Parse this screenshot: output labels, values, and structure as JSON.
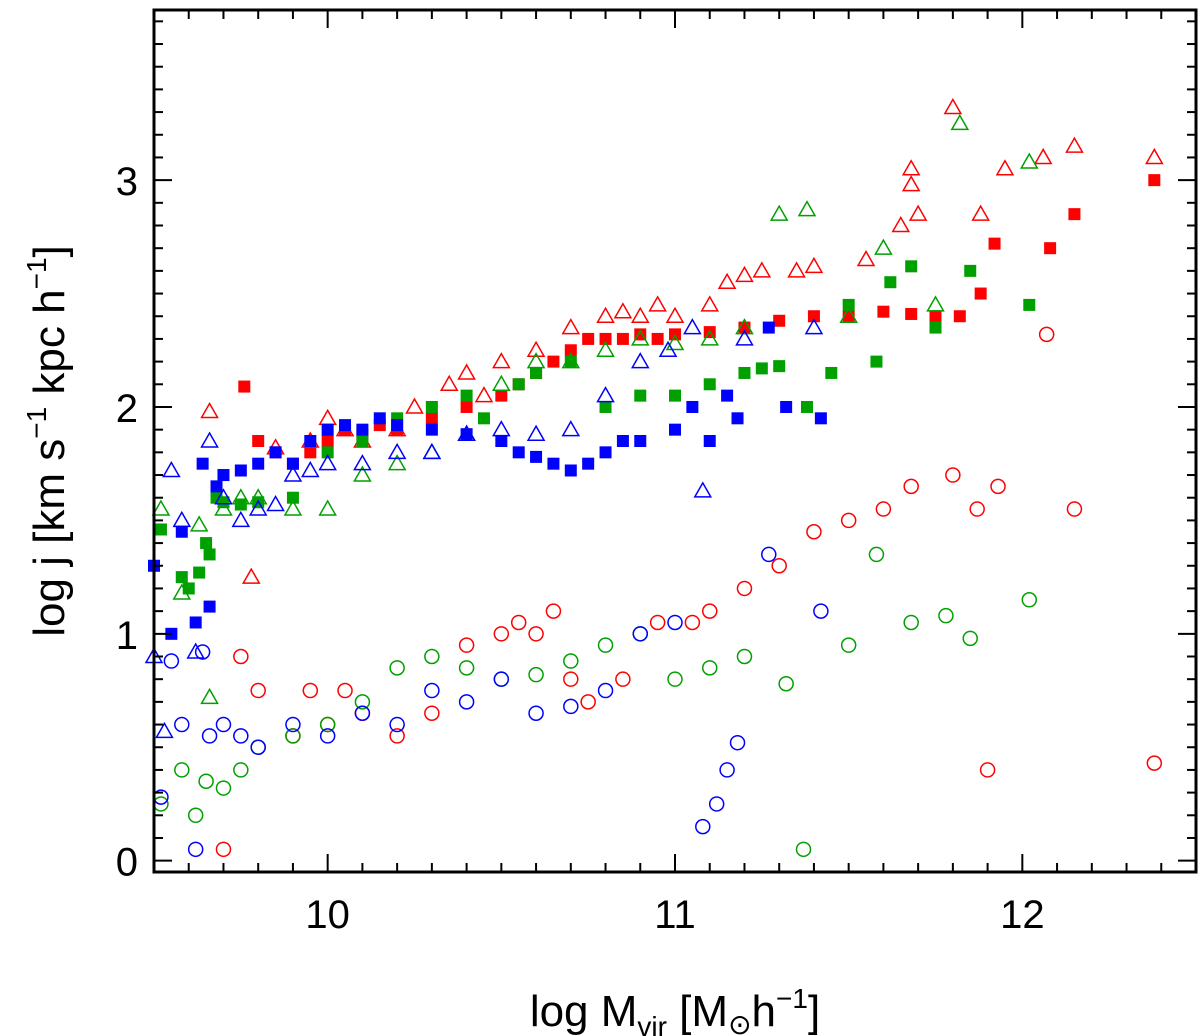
{
  "chart_data": {
    "type": "scatter",
    "title": "",
    "xlabel": {
      "base": "log  M",
      "sub": "vir",
      "bracket_open": " [M",
      "sun": "⊙",
      "unit": "h",
      "exp": "−1",
      "bracket_close": "]"
    },
    "ylabel": {
      "text": "log  j  [km  s",
      "exp1": "−1",
      "mid": "  kpc  h",
      "exp2": "−1",
      "close": "]"
    },
    "xlim": [
      9.5,
      12.5
    ],
    "ylim": [
      -0.05,
      3.75
    ],
    "x_ticks": [
      {
        "v": 10,
        "label": "10"
      },
      {
        "v": 11,
        "label": "11"
      },
      {
        "v": 12,
        "label": "12"
      }
    ],
    "y_ticks": [
      {
        "v": 0,
        "label": "0"
      },
      {
        "v": 1,
        "label": "1"
      },
      {
        "v": 2,
        "label": "2"
      },
      {
        "v": 3,
        "label": "3"
      }
    ],
    "grid": false,
    "series": [
      {
        "name": "red-squares",
        "color": "#ff0000",
        "marker": "square-filled",
        "points": [
          [
            9.76,
            2.09
          ],
          [
            9.8,
            1.85
          ],
          [
            9.85,
            1.8
          ],
          [
            9.9,
            1.75
          ],
          [
            9.95,
            1.8
          ],
          [
            10.0,
            1.85
          ],
          [
            10.05,
            1.9
          ],
          [
            10.1,
            1.88
          ],
          [
            10.15,
            1.92
          ],
          [
            10.2,
            1.9
          ],
          [
            10.3,
            1.95
          ],
          [
            10.4,
            2.0
          ],
          [
            10.5,
            2.05
          ],
          [
            10.55,
            2.1
          ],
          [
            10.6,
            2.15
          ],
          [
            10.65,
            2.2
          ],
          [
            10.7,
            2.25
          ],
          [
            10.75,
            2.3
          ],
          [
            10.8,
            2.3
          ],
          [
            10.85,
            2.3
          ],
          [
            10.9,
            2.32
          ],
          [
            10.95,
            2.3
          ],
          [
            11.0,
            2.32
          ],
          [
            11.1,
            2.33
          ],
          [
            11.2,
            2.35
          ],
          [
            11.3,
            2.38
          ],
          [
            11.4,
            2.4
          ],
          [
            11.5,
            2.4
          ],
          [
            11.6,
            2.42
          ],
          [
            11.68,
            2.41
          ],
          [
            11.75,
            2.4
          ],
          [
            11.82,
            2.4
          ],
          [
            11.88,
            2.5
          ],
          [
            11.92,
            2.72
          ],
          [
            12.08,
            2.7
          ],
          [
            12.15,
            2.85
          ],
          [
            12.38,
            3.0
          ]
        ]
      },
      {
        "name": "red-triangles",
        "color": "#ff0000",
        "marker": "triangle-open",
        "points": [
          [
            9.66,
            1.98
          ],
          [
            9.78,
            1.25
          ],
          [
            9.85,
            1.82
          ],
          [
            9.95,
            1.85
          ],
          [
            10.0,
            1.95
          ],
          [
            10.05,
            1.9
          ],
          [
            10.1,
            1.85
          ],
          [
            10.2,
            1.9
          ],
          [
            10.25,
            2.0
          ],
          [
            10.35,
            2.1
          ],
          [
            10.4,
            2.15
          ],
          [
            10.45,
            2.05
          ],
          [
            10.5,
            2.2
          ],
          [
            10.6,
            2.25
          ],
          [
            10.7,
            2.35
          ],
          [
            10.8,
            2.4
          ],
          [
            10.85,
            2.42
          ],
          [
            10.9,
            2.4
          ],
          [
            10.95,
            2.45
          ],
          [
            11.0,
            2.4
          ],
          [
            11.1,
            2.45
          ],
          [
            11.15,
            2.55
          ],
          [
            11.2,
            2.58
          ],
          [
            11.25,
            2.6
          ],
          [
            11.35,
            2.6
          ],
          [
            11.4,
            2.62
          ],
          [
            11.55,
            2.65
          ],
          [
            11.65,
            2.8
          ],
          [
            11.68,
            2.98
          ],
          [
            11.68,
            3.05
          ],
          [
            11.7,
            2.85
          ],
          [
            11.8,
            3.32
          ],
          [
            11.88,
            2.85
          ],
          [
            11.95,
            3.05
          ],
          [
            12.06,
            3.1
          ],
          [
            12.15,
            3.15
          ],
          [
            12.38,
            3.1
          ]
        ]
      },
      {
        "name": "green-squares",
        "color": "#00a000",
        "marker": "square-filled",
        "points": [
          [
            9.52,
            1.46
          ],
          [
            9.58,
            1.25
          ],
          [
            9.6,
            1.2
          ],
          [
            9.63,
            1.27
          ],
          [
            9.65,
            1.4
          ],
          [
            9.66,
            1.35
          ],
          [
            9.68,
            1.6
          ],
          [
            9.7,
            1.58
          ],
          [
            9.75,
            1.57
          ],
          [
            9.8,
            1.58
          ],
          [
            9.9,
            1.6
          ],
          [
            10.0,
            1.8
          ],
          [
            10.1,
            1.85
          ],
          [
            10.2,
            1.95
          ],
          [
            10.3,
            2.0
          ],
          [
            10.4,
            2.05
          ],
          [
            10.45,
            1.95
          ],
          [
            10.55,
            2.1
          ],
          [
            10.6,
            2.15
          ],
          [
            10.7,
            2.2
          ],
          [
            10.8,
            2.0
          ],
          [
            10.9,
            2.05
          ],
          [
            11.0,
            2.05
          ],
          [
            11.1,
            2.1
          ],
          [
            11.2,
            2.15
          ],
          [
            11.25,
            2.17
          ],
          [
            11.3,
            2.18
          ],
          [
            11.38,
            2.0
          ],
          [
            11.45,
            2.15
          ],
          [
            11.5,
            2.45
          ],
          [
            11.58,
            2.2
          ],
          [
            11.62,
            2.55
          ],
          [
            11.68,
            2.62
          ],
          [
            11.75,
            2.35
          ],
          [
            11.85,
            2.6
          ],
          [
            12.02,
            2.45
          ]
        ]
      },
      {
        "name": "green-triangles",
        "color": "#00a000",
        "marker": "triangle-open",
        "points": [
          [
            9.52,
            1.55
          ],
          [
            9.58,
            1.18
          ],
          [
            9.63,
            1.48
          ],
          [
            9.66,
            0.72
          ],
          [
            9.7,
            1.55
          ],
          [
            9.75,
            1.6
          ],
          [
            9.8,
            1.6
          ],
          [
            9.9,
            1.55
          ],
          [
            10.0,
            1.55
          ],
          [
            10.1,
            1.7
          ],
          [
            10.2,
            1.75
          ],
          [
            10.3,
            1.8
          ],
          [
            10.4,
            1.88
          ],
          [
            10.5,
            2.1
          ],
          [
            10.6,
            2.2
          ],
          [
            10.7,
            2.2
          ],
          [
            10.8,
            2.25
          ],
          [
            10.9,
            2.3
          ],
          [
            11.0,
            2.28
          ],
          [
            11.1,
            2.3
          ],
          [
            11.2,
            2.35
          ],
          [
            11.3,
            2.85
          ],
          [
            11.38,
            2.87
          ],
          [
            11.5,
            2.4
          ],
          [
            11.6,
            2.7
          ],
          [
            11.75,
            2.45
          ],
          [
            11.82,
            3.25
          ],
          [
            12.02,
            3.08
          ]
        ]
      },
      {
        "name": "blue-squares",
        "color": "#0000ff",
        "marker": "square-filled",
        "points": [
          [
            9.5,
            1.3
          ],
          [
            9.55,
            1.0
          ],
          [
            9.58,
            1.45
          ],
          [
            9.62,
            1.05
          ],
          [
            9.64,
            1.75
          ],
          [
            9.66,
            1.12
          ],
          [
            9.68,
            1.65
          ],
          [
            9.7,
            1.7
          ],
          [
            9.75,
            1.72
          ],
          [
            9.8,
            1.75
          ],
          [
            9.85,
            1.8
          ],
          [
            9.9,
            1.75
          ],
          [
            9.95,
            1.85
          ],
          [
            10.0,
            1.9
          ],
          [
            10.05,
            1.92
          ],
          [
            10.1,
            1.9
          ],
          [
            10.15,
            1.95
          ],
          [
            10.2,
            1.92
          ],
          [
            10.3,
            1.9
          ],
          [
            10.4,
            1.88
          ],
          [
            10.5,
            1.85
          ],
          [
            10.55,
            1.8
          ],
          [
            10.6,
            1.78
          ],
          [
            10.65,
            1.75
          ],
          [
            10.7,
            1.72
          ],
          [
            10.75,
            1.75
          ],
          [
            10.8,
            1.8
          ],
          [
            10.85,
            1.85
          ],
          [
            10.9,
            1.85
          ],
          [
            11.0,
            1.9
          ],
          [
            11.05,
            2.0
          ],
          [
            11.1,
            1.85
          ],
          [
            11.15,
            2.05
          ],
          [
            11.18,
            1.95
          ],
          [
            11.27,
            2.35
          ],
          [
            11.32,
            2.0
          ],
          [
            11.42,
            1.95
          ]
        ]
      },
      {
        "name": "blue-triangles",
        "color": "#0000ff",
        "marker": "triangle-open",
        "points": [
          [
            9.5,
            0.9
          ],
          [
            9.53,
            0.57
          ],
          [
            9.55,
            1.72
          ],
          [
            9.58,
            1.5
          ],
          [
            9.62,
            0.92
          ],
          [
            9.66,
            1.85
          ],
          [
            9.7,
            1.6
          ],
          [
            9.75,
            1.5
          ],
          [
            9.8,
            1.55
          ],
          [
            9.85,
            1.57
          ],
          [
            9.9,
            1.7
          ],
          [
            9.95,
            1.72
          ],
          [
            10.0,
            1.75
          ],
          [
            10.1,
            1.75
          ],
          [
            10.2,
            1.8
          ],
          [
            10.3,
            1.8
          ],
          [
            10.4,
            1.88
          ],
          [
            10.5,
            1.9
          ],
          [
            10.6,
            1.88
          ],
          [
            10.7,
            1.9
          ],
          [
            10.8,
            2.05
          ],
          [
            10.9,
            2.2
          ],
          [
            10.98,
            2.25
          ],
          [
            11.05,
            2.35
          ],
          [
            11.08,
            1.63
          ],
          [
            11.2,
            2.3
          ],
          [
            11.4,
            2.35
          ]
        ]
      },
      {
        "name": "red-circles",
        "color": "#ff0000",
        "marker": "circle-open",
        "points": [
          [
            9.7,
            0.05
          ],
          [
            9.75,
            0.9
          ],
          [
            9.8,
            0.75
          ],
          [
            9.9,
            0.55
          ],
          [
            9.95,
            0.75
          ],
          [
            10.0,
            0.6
          ],
          [
            10.05,
            0.75
          ],
          [
            10.1,
            0.65
          ],
          [
            10.2,
            0.55
          ],
          [
            10.3,
            0.65
          ],
          [
            10.4,
            0.95
          ],
          [
            10.5,
            1.0
          ],
          [
            10.55,
            1.05
          ],
          [
            10.6,
            1.0
          ],
          [
            10.65,
            1.1
          ],
          [
            10.7,
            0.8
          ],
          [
            10.75,
            0.7
          ],
          [
            10.85,
            0.8
          ],
          [
            10.95,
            1.05
          ],
          [
            11.05,
            1.05
          ],
          [
            11.1,
            1.1
          ],
          [
            11.2,
            1.2
          ],
          [
            11.3,
            1.3
          ],
          [
            11.4,
            1.45
          ],
          [
            11.5,
            1.5
          ],
          [
            11.6,
            1.55
          ],
          [
            11.68,
            1.65
          ],
          [
            11.8,
            1.7
          ],
          [
            11.87,
            1.55
          ],
          [
            11.9,
            0.4
          ],
          [
            11.93,
            1.65
          ],
          [
            12.07,
            2.32
          ],
          [
            12.15,
            1.55
          ],
          [
            12.38,
            0.43
          ]
        ]
      },
      {
        "name": "green-circles",
        "color": "#00a000",
        "marker": "circle-open",
        "points": [
          [
            9.52,
            0.25
          ],
          [
            9.58,
            0.4
          ],
          [
            9.62,
            0.2
          ],
          [
            9.65,
            0.35
          ],
          [
            9.7,
            0.32
          ],
          [
            9.75,
            0.4
          ],
          [
            9.8,
            0.5
          ],
          [
            9.9,
            0.55
          ],
          [
            10.0,
            0.6
          ],
          [
            10.1,
            0.7
          ],
          [
            10.2,
            0.85
          ],
          [
            10.3,
            0.9
          ],
          [
            10.4,
            0.85
          ],
          [
            10.5,
            0.8
          ],
          [
            10.6,
            0.82
          ],
          [
            10.7,
            0.88
          ],
          [
            10.8,
            0.95
          ],
          [
            10.9,
            1.0
          ],
          [
            11.0,
            0.8
          ],
          [
            11.1,
            0.85
          ],
          [
            11.2,
            0.9
          ],
          [
            11.32,
            0.78
          ],
          [
            11.37,
            0.05
          ],
          [
            11.5,
            0.95
          ],
          [
            11.58,
            1.35
          ],
          [
            11.68,
            1.05
          ],
          [
            11.78,
            1.08
          ],
          [
            11.85,
            0.98
          ],
          [
            12.02,
            1.15
          ]
        ]
      },
      {
        "name": "blue-circles",
        "color": "#0000ff",
        "marker": "circle-open",
        "points": [
          [
            9.52,
            0.28
          ],
          [
            9.55,
            0.88
          ],
          [
            9.58,
            0.6
          ],
          [
            9.62,
            0.05
          ],
          [
            9.64,
            0.92
          ],
          [
            9.66,
            0.55
          ],
          [
            9.7,
            0.6
          ],
          [
            9.75,
            0.55
          ],
          [
            9.8,
            0.5
          ],
          [
            9.9,
            0.6
          ],
          [
            10.0,
            0.55
          ],
          [
            10.1,
            0.65
          ],
          [
            10.2,
            0.6
          ],
          [
            10.3,
            0.75
          ],
          [
            10.4,
            0.7
          ],
          [
            10.5,
            0.8
          ],
          [
            10.6,
            0.65
          ],
          [
            10.7,
            0.68
          ],
          [
            10.8,
            0.75
          ],
          [
            10.9,
            1.0
          ],
          [
            11.0,
            1.05
          ],
          [
            11.08,
            0.15
          ],
          [
            11.12,
            0.25
          ],
          [
            11.15,
            0.4
          ],
          [
            11.18,
            0.52
          ],
          [
            11.27,
            1.35
          ],
          [
            11.42,
            1.1
          ]
        ]
      }
    ]
  }
}
